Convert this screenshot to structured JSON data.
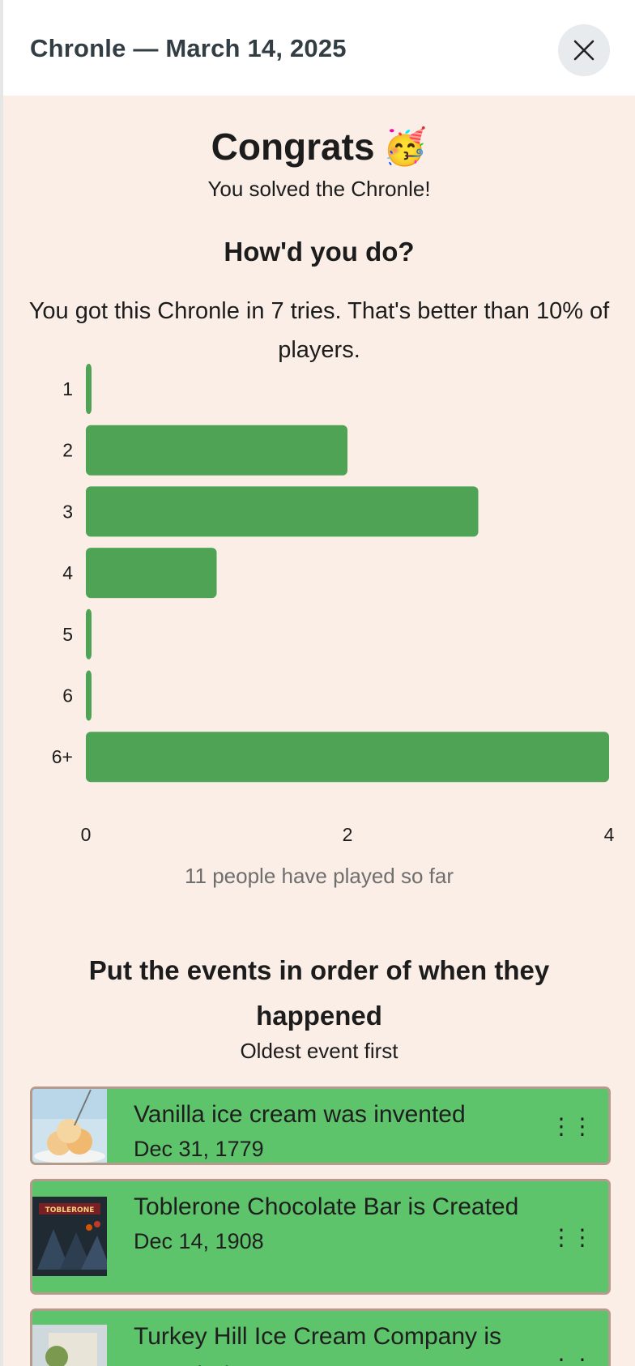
{
  "header": {
    "title": "Chronle — March 14, 2025",
    "close_icon": "close-icon"
  },
  "congrats": {
    "title": "Congrats",
    "emoji": "🥳",
    "subtitle": "You solved the Chronle!"
  },
  "stats": {
    "heading": "How'd you do?",
    "result_text": "You got this Chronle in 7 tries. That's better than 10% of players.",
    "played_text": "11 people have played so far"
  },
  "chart_data": {
    "type": "bar",
    "orientation": "horizontal",
    "categories": [
      "1",
      "2",
      "3",
      "4",
      "5",
      "6",
      "6+"
    ],
    "values": [
      0,
      2,
      3,
      1,
      0,
      0,
      4
    ],
    "xlim": [
      0,
      4
    ],
    "xticks": [
      "0",
      "2",
      "4"
    ],
    "grid": false,
    "bar_color": "#4ea355"
  },
  "events_section": {
    "title": "Put the events in order of when they happened",
    "subtitle": "Oldest event first",
    "item_color": "#5ec46b",
    "drag_icon": "drag-handle-icon",
    "items": [
      {
        "name": "Vanilla ice cream was invented",
        "date": "Dec 31, 1779",
        "thumb_label": ""
      },
      {
        "name": "Toblerone Chocolate Bar is Created",
        "date": "Dec 14, 1908",
        "thumb_label": "TOBLERONE"
      },
      {
        "name": "Turkey Hill Ice Cream Company is Founded",
        "date": "",
        "thumb_label": ""
      }
    ]
  }
}
